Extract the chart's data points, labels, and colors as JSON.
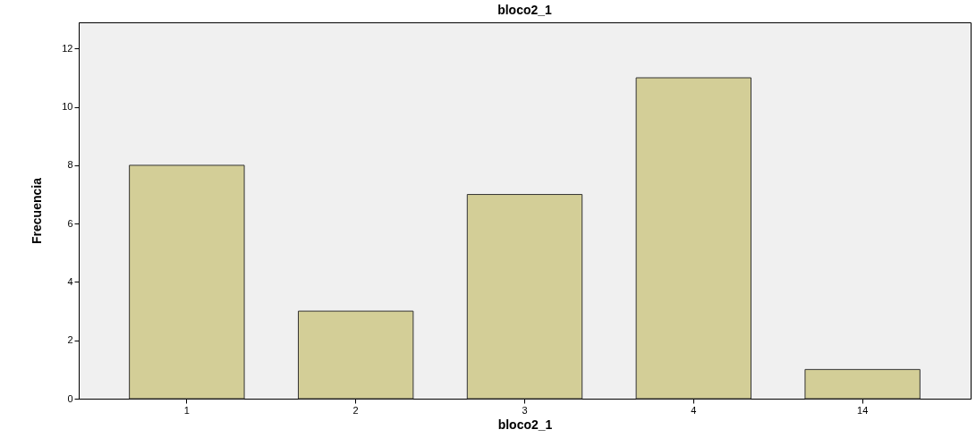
{
  "chart_data": {
    "type": "bar",
    "title": "bloco2_1",
    "xlabel": "bloco2_1",
    "ylabel": "Frecuencia",
    "categories": [
      "1",
      "2",
      "3",
      "4",
      "14"
    ],
    "values": [
      8,
      3,
      7,
      11,
      1
    ],
    "color": "#d3ce97",
    "ylim": [
      0,
      12.9
    ],
    "yticks": [
      0,
      2,
      4,
      6,
      8,
      10,
      12
    ]
  }
}
